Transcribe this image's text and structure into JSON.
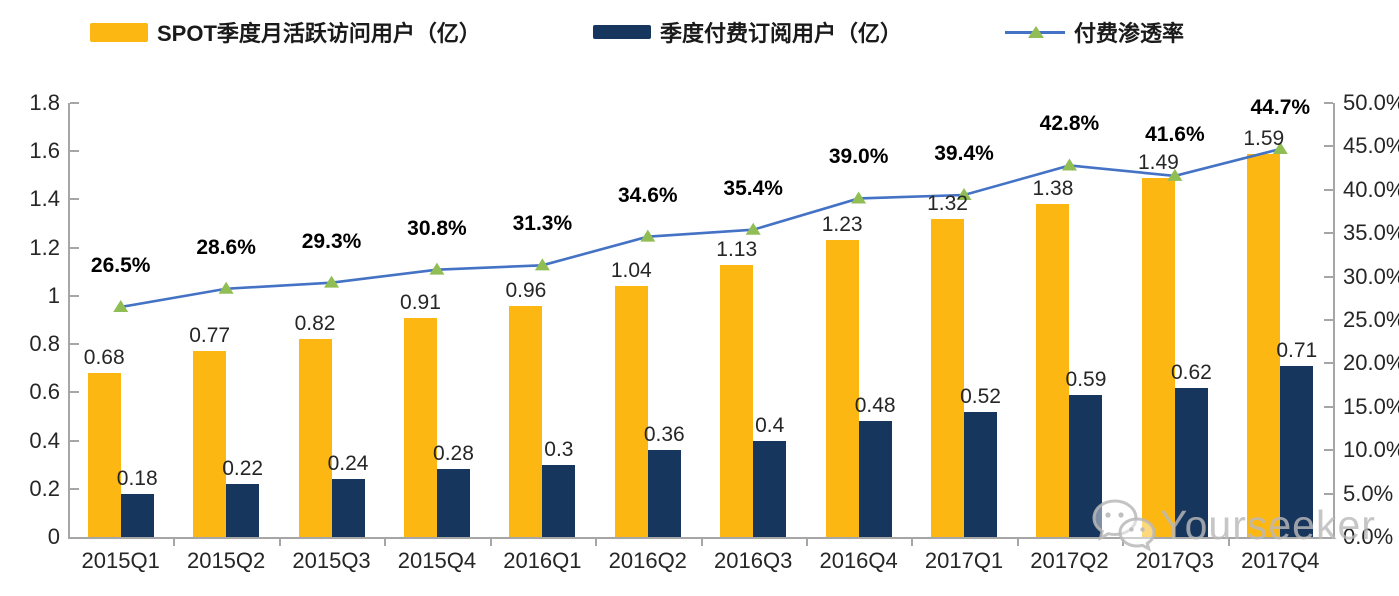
{
  "legend": {
    "items": [
      {
        "label": "SPOT季度月活跃访问用户（亿）",
        "swatch": "bar",
        "color": "#FCB712"
      },
      {
        "label": "季度付费订阅用户（亿）",
        "swatch": "bar",
        "color": "#17365D"
      },
      {
        "label": "付费渗透率",
        "swatch": "line",
        "color": "#4472C4",
        "marker_color": "#90BE55"
      }
    ]
  },
  "chart_data": {
    "type": "bar",
    "subtype": "combo-bar-line-dual-axis",
    "categories": [
      "2015Q1",
      "2015Q2",
      "2015Q3",
      "2015Q4",
      "2016Q1",
      "2016Q2",
      "2016Q3",
      "2016Q4",
      "2017Q1",
      "2017Q2",
      "2017Q3",
      "2017Q4"
    ],
    "series": [
      {
        "name": "SPOT季度月活跃访问用户（亿）",
        "type": "bar",
        "axis": "left",
        "color": "#FCB712",
        "values": [
          0.68,
          0.77,
          0.82,
          0.91,
          0.96,
          1.04,
          1.13,
          1.23,
          1.32,
          1.38,
          1.49,
          1.59
        ],
        "labels": [
          "0.68",
          "0.77",
          "0.82",
          "0.91",
          "0.96",
          "1.04",
          "1.13",
          "1.23",
          "1.32",
          "1.38",
          "1.49",
          "1.59"
        ]
      },
      {
        "name": "季度付费订阅用户（亿）",
        "type": "bar",
        "axis": "left",
        "color": "#17365D",
        "values": [
          0.18,
          0.22,
          0.24,
          0.28,
          0.3,
          0.36,
          0.4,
          0.48,
          0.52,
          0.59,
          0.62,
          0.71
        ],
        "labels": [
          "0.18",
          "0.22",
          "0.24",
          "0.28",
          "0.3",
          "0.36",
          "0.4",
          "0.48",
          "0.52",
          "0.59",
          "0.62",
          "0.71"
        ]
      },
      {
        "name": "付费渗透率",
        "type": "line",
        "axis": "right",
        "color": "#4472C4",
        "marker": "triangle",
        "marker_color": "#90BE55",
        "values": [
          26.5,
          28.6,
          29.3,
          30.8,
          31.3,
          34.6,
          35.4,
          39.0,
          39.4,
          42.8,
          41.6,
          44.7
        ],
        "labels": [
          "26.5%",
          "28.6%",
          "29.3%",
          "30.8%",
          "31.3%",
          "34.6%",
          "35.4%",
          "39.0%",
          "39.4%",
          "42.8%",
          "41.6%",
          "44.7%"
        ]
      }
    ],
    "left_axis": {
      "min": 0,
      "max": 1.8,
      "tick_step": 0.2,
      "tick_labels": [
        "0",
        "0.2",
        "0.4",
        "0.6",
        "0.8",
        "1",
        "1.2",
        "1.4",
        "1.6",
        "1.8"
      ]
    },
    "right_axis": {
      "min": 0,
      "max": 50,
      "tick_step": 5,
      "tick_labels": [
        "0.0%",
        "5.0%",
        "10.0%",
        "15.0%",
        "20.0%",
        "25.0%",
        "30.0%",
        "35.0%",
        "40.0%",
        "45.0%",
        "50.0%"
      ]
    },
    "grid": false,
    "legend_position": "top"
  },
  "watermark": {
    "text": "Yourseeker",
    "icon": "wechat-icon"
  }
}
